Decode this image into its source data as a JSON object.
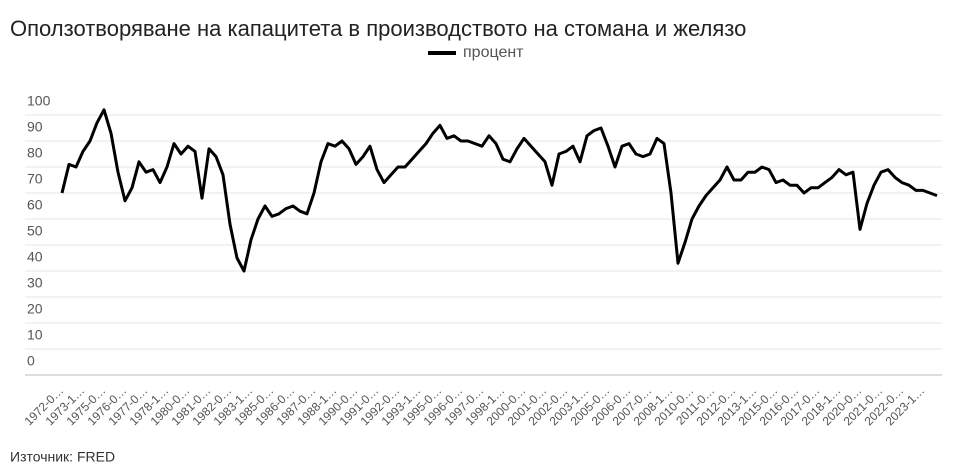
{
  "chart_data": {
    "type": "line",
    "title": "Оползотворяване на капацитета в производството на стомана и желязо",
    "source": "Източник: FRED",
    "categories": [
      "1972-0…",
      null,
      null,
      "1973-1…",
      null,
      null,
      "1975-0…",
      null,
      null,
      "1976-0…",
      null,
      null,
      "1977-0…",
      null,
      null,
      "1978-1…",
      null,
      null,
      "1980-0…",
      null,
      null,
      "1981-0…",
      null,
      null,
      "1982-0…",
      null,
      null,
      "1983-1…",
      null,
      null,
      "1985-0…",
      null,
      null,
      "1986-0…",
      null,
      null,
      "1987-0…",
      null,
      null,
      "1988-1…",
      null,
      null,
      "1990-0…",
      null,
      null,
      "1991-0…",
      null,
      null,
      "1992-0…",
      null,
      null,
      "1993-1…",
      null,
      null,
      "1995-0…",
      null,
      null,
      "1996-0…",
      null,
      null,
      "1997-0…",
      null,
      null,
      "1998-1…",
      null,
      null,
      "2000-0…",
      null,
      null,
      "2001-0…",
      null,
      null,
      "2002-0…",
      null,
      null,
      "2003-1…",
      null,
      null,
      "2005-0…",
      null,
      null,
      "2006-0…",
      null,
      null,
      "2007-0…",
      null,
      null,
      "2008-1…",
      null,
      null,
      "2010-0…",
      null,
      null,
      "2011-0…",
      null,
      null,
      "2012-0…",
      null,
      null,
      "2013-1…",
      null,
      null,
      "2015-0…",
      null,
      null,
      "2016-0…",
      null,
      null,
      "2017-0…",
      null,
      null,
      "2018-1…",
      null,
      null,
      "2020-0…",
      null,
      null,
      "2021-0…",
      null,
      null,
      "2022-0…",
      null,
      null,
      "2023-1…",
      null,
      null
    ],
    "series": [
      {
        "name": "процент",
        "color": "#000000",
        "values": [
          70,
          81,
          80,
          86,
          90,
          97,
          102,
          93,
          78,
          67,
          72,
          82,
          78,
          79,
          74,
          80,
          89,
          85,
          88,
          86,
          68,
          87,
          84,
          77,
          58,
          45,
          40,
          52,
          60,
          65,
          61,
          62,
          64,
          65,
          63,
          62,
          70,
          82,
          89,
          88,
          90,
          87,
          81,
          84,
          88,
          79,
          74,
          77,
          80,
          80,
          83,
          86,
          89,
          93,
          96,
          91,
          92,
          90,
          90,
          89,
          88,
          92,
          89,
          83,
          82,
          87,
          91,
          88,
          85,
          82,
          73,
          85,
          86,
          88,
          82,
          92,
          94,
          95,
          88,
          80,
          88,
          89,
          85,
          84,
          85,
          91,
          89,
          70,
          43,
          51,
          60,
          65,
          69,
          72,
          75,
          80,
          75,
          75,
          78,
          78,
          80,
          79,
          74,
          75,
          73,
          73,
          70,
          72,
          72,
          74,
          76,
          79,
          77,
          78,
          56,
          66,
          73,
          78,
          79,
          76,
          74,
          73,
          71,
          71,
          70,
          69
        ]
      }
    ],
    "ylim": [
      0,
      100
    ],
    "yticks": [
      0,
      10,
      20,
      30,
      40,
      50,
      60,
      70,
      80,
      90,
      100
    ],
    "grid": true
  }
}
